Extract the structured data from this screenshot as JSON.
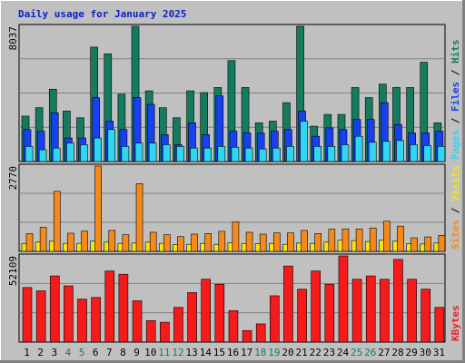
{
  "title": "Daily usage for January 2025",
  "colors": {
    "background": "#c0c0c0",
    "title": "#0a21c8",
    "hits": "#157b5e",
    "files": "#1940f0",
    "pages": "#2ed6f2",
    "visits": "#f5e60f",
    "sites": "#f58a1b",
    "kbytes": "#f51b1b",
    "weekend_label": "#157b5e",
    "weekday_label": "#000000",
    "separator": "#000000"
  },
  "legend": {
    "panel1": [
      "Pages",
      "/",
      "Files",
      "/",
      "Hits"
    ],
    "panel2": [
      "Sites",
      "/",
      "Visits"
    ],
    "panel3": [
      "KBytes"
    ]
  },
  "chart_data": [
    {
      "type": "bar",
      "name": "hits-files-pages",
      "ymax_label": "8037",
      "ylim": [
        0,
        8037
      ],
      "grid": true,
      "legend_position": "right",
      "categories": [
        "1",
        "2",
        "3",
        "4",
        "5",
        "6",
        "7",
        "8",
        "9",
        "10",
        "11",
        "12",
        "13",
        "14",
        "15",
        "16",
        "17",
        "18",
        "19",
        "20",
        "21",
        "22",
        "23",
        "24",
        "25",
        "26",
        "27",
        "28",
        "29",
        "30",
        "31"
      ],
      "series": [
        {
          "name": "Hits",
          "values": [
            2700,
            3200,
            4300,
            3000,
            2600,
            6800,
            6400,
            4000,
            8037,
            4200,
            3200,
            2600,
            4200,
            4100,
            4400,
            6000,
            4400,
            2300,
            2400,
            3500,
            8037,
            2100,
            2800,
            2800,
            4400,
            3800,
            4600,
            4400,
            4400,
            5900,
            2300
          ]
        },
        {
          "name": "Files",
          "values": [
            1900,
            1800,
            2900,
            1400,
            1400,
            3800,
            2400,
            1900,
            3800,
            3400,
            1600,
            1000,
            2300,
            1600,
            3900,
            1800,
            1700,
            1700,
            1800,
            1900,
            3000,
            1500,
            2000,
            1900,
            2500,
            2500,
            3500,
            2200,
            1700,
            1700,
            1800
          ]
        },
        {
          "name": "Pages",
          "values": [
            900,
            700,
            800,
            1100,
            1000,
            1400,
            1900,
            900,
            1100,
            1100,
            1000,
            900,
            800,
            800,
            900,
            850,
            800,
            750,
            800,
            900,
            2400,
            900,
            900,
            1000,
            1500,
            1150,
            1200,
            1250,
            1000,
            950,
            900
          ]
        }
      ]
    },
    {
      "type": "bar",
      "name": "sites-visits",
      "ymax_label": "2770",
      "ylim": [
        0,
        2770
      ],
      "grid": true,
      "legend_position": "right",
      "categories": [
        "1",
        "2",
        "3",
        "4",
        "5",
        "6",
        "7",
        "8",
        "9",
        "10",
        "11",
        "12",
        "13",
        "14",
        "15",
        "16",
        "17",
        "18",
        "19",
        "20",
        "21",
        "22",
        "23",
        "24",
        "25",
        "26",
        "27",
        "28",
        "29",
        "30",
        "31"
      ],
      "series": [
        {
          "name": "Visits",
          "values": [
            250,
            300,
            330,
            260,
            260,
            330,
            300,
            260,
            270,
            300,
            260,
            220,
            230,
            260,
            230,
            280,
            260,
            250,
            260,
            230,
            270,
            260,
            300,
            360,
            350,
            320,
            360,
            330,
            250,
            240,
            270
          ]
        },
        {
          "name": "Sites",
          "values": [
            580,
            780,
            1950,
            590,
            660,
            2770,
            680,
            540,
            2200,
            620,
            540,
            480,
            560,
            580,
            650,
            960,
            620,
            560,
            600,
            600,
            680,
            580,
            720,
            730,
            730,
            760,
            980,
            820,
            440,
            470,
            520
          ]
        }
      ]
    },
    {
      "type": "bar",
      "name": "kbytes",
      "ymax_label": "52109",
      "ylim": [
        0,
        52109
      ],
      "grid": true,
      "legend_position": "right",
      "categories": [
        "1",
        "2",
        "3",
        "4",
        "5",
        "6",
        "7",
        "8",
        "9",
        "10",
        "11",
        "12",
        "13",
        "14",
        "15",
        "16",
        "17",
        "18",
        "19",
        "20",
        "21",
        "22",
        "23",
        "24",
        "25",
        "26",
        "27",
        "28",
        "29",
        "30",
        "31"
      ],
      "series": [
        {
          "name": "KBytes",
          "values": [
            33000,
            31000,
            40000,
            34000,
            26000,
            27000,
            43000,
            41000,
            25000,
            13000,
            12000,
            21000,
            30000,
            38000,
            35000,
            19000,
            7000,
            11000,
            28000,
            46000,
            32000,
            43000,
            35000,
            52109,
            38000,
            40000,
            38000,
            50000,
            38000,
            32000,
            21000
          ]
        }
      ]
    }
  ],
  "day_labels": [
    {
      "label": "1",
      "weekend": false
    },
    {
      "label": "2",
      "weekend": false
    },
    {
      "label": "3",
      "weekend": false
    },
    {
      "label": "4",
      "weekend": true
    },
    {
      "label": "5",
      "weekend": true
    },
    {
      "label": "6",
      "weekend": false
    },
    {
      "label": "7",
      "weekend": false
    },
    {
      "label": "8",
      "weekend": false
    },
    {
      "label": "9",
      "weekend": false
    },
    {
      "label": "10",
      "weekend": false
    },
    {
      "label": "11",
      "weekend": true
    },
    {
      "label": "12",
      "weekend": true
    },
    {
      "label": "13",
      "weekend": false
    },
    {
      "label": "14",
      "weekend": false
    },
    {
      "label": "15",
      "weekend": false
    },
    {
      "label": "16",
      "weekend": false
    },
    {
      "label": "17",
      "weekend": false
    },
    {
      "label": "18",
      "weekend": true
    },
    {
      "label": "19",
      "weekend": true
    },
    {
      "label": "20",
      "weekend": false
    },
    {
      "label": "21",
      "weekend": false
    },
    {
      "label": "22",
      "weekend": false
    },
    {
      "label": "23",
      "weekend": false
    },
    {
      "label": "24",
      "weekend": false
    },
    {
      "label": "25",
      "weekend": true
    },
    {
      "label": "26",
      "weekend": true
    },
    {
      "label": "27",
      "weekend": false
    },
    {
      "label": "28",
      "weekend": false
    },
    {
      "label": "29",
      "weekend": false
    },
    {
      "label": "30",
      "weekend": false
    },
    {
      "label": "31",
      "weekend": false
    }
  ]
}
